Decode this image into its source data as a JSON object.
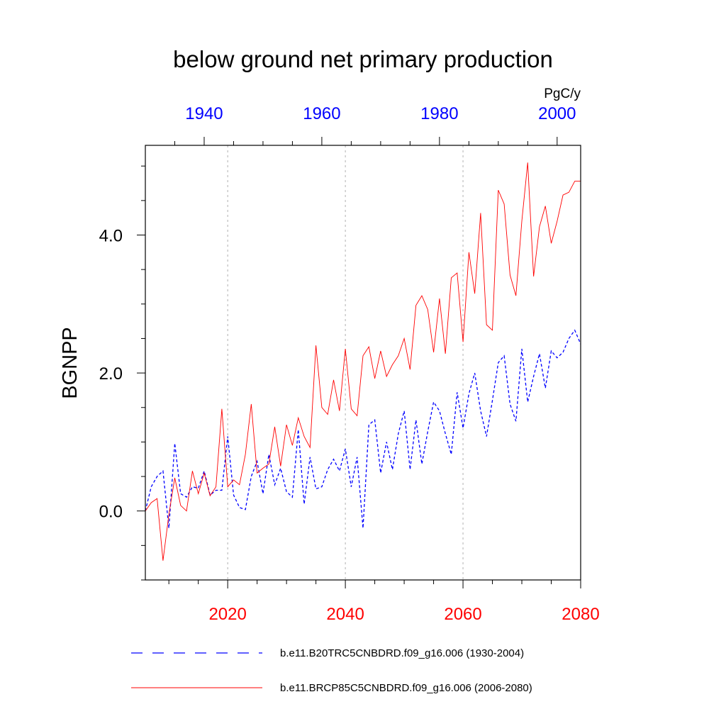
{
  "chart_data": {
    "type": "line",
    "title": "below ground net primary production",
    "units": "PgC/y",
    "ylabel": "BGNPP",
    "xlabel": "",
    "ylim": [
      -1.0,
      5.3
    ],
    "yticks": [
      0.0,
      2.0,
      4.0
    ],
    "ytick_labels": [
      "0.0",
      "2.0",
      "4.0"
    ],
    "top_axis": {
      "range": [
        1930,
        2004
      ],
      "ticks": [
        1940,
        1960,
        1980,
        2000
      ],
      "labels": [
        "1940",
        "1960",
        "1980",
        "2000"
      ],
      "color": "#0000ff"
    },
    "bottom_axis": {
      "range": [
        2006,
        2080
      ],
      "ticks": [
        2020,
        2040,
        2060,
        2080
      ],
      "labels": [
        "2020",
        "2040",
        "2060",
        "2080"
      ],
      "color": "#ff0000"
    },
    "grid": "vertical dashed at bottom-axis major ticks",
    "legend_placement": "bottom",
    "series": [
      {
        "name": "b.e11.B20TRC5CNBDRD.f09_g16.006 (1930-2004)",
        "axis": "top",
        "color": "#0000ff",
        "style": "dashed",
        "x_start": 1930,
        "values": [
          0.0,
          0.35,
          0.5,
          0.58,
          -0.25,
          0.98,
          0.25,
          0.2,
          0.35,
          0.33,
          0.58,
          0.23,
          0.3,
          0.3,
          1.08,
          0.23,
          0.05,
          0.02,
          0.5,
          0.72,
          0.25,
          0.82,
          0.38,
          0.62,
          0.28,
          0.2,
          1.18,
          0.1,
          0.78,
          0.32,
          0.35,
          0.6,
          0.75,
          0.58,
          0.9,
          0.35,
          0.78,
          -0.25,
          1.25,
          1.32,
          0.55,
          1.0,
          0.6,
          1.12,
          1.45,
          0.6,
          1.32,
          0.68,
          1.15,
          1.58,
          1.45,
          1.12,
          0.82,
          1.72,
          1.2,
          1.7,
          2.0,
          1.45,
          1.08,
          1.6,
          2.15,
          2.25,
          1.55,
          1.3,
          2.35,
          1.58,
          1.95,
          2.28,
          1.78,
          2.32,
          2.22,
          2.3,
          2.5,
          2.62,
          2.42
        ]
      },
      {
        "name": "b.e11.BRCP85C5CNBDRD.f09_g16.006 (2006-2080)",
        "axis": "bottom",
        "color": "#ff0000",
        "style": "solid",
        "x_start": 2006,
        "values": [
          0.0,
          0.12,
          0.18,
          -0.72,
          -0.05,
          0.48,
          0.08,
          0.0,
          0.58,
          0.25,
          0.55,
          0.22,
          0.35,
          1.48,
          0.35,
          0.45,
          0.38,
          0.82,
          1.55,
          0.55,
          0.62,
          0.68,
          1.22,
          0.65,
          1.25,
          0.95,
          1.35,
          1.08,
          0.92,
          2.4,
          1.5,
          1.4,
          1.9,
          1.45,
          2.35,
          1.48,
          1.38,
          2.25,
          2.38,
          1.92,
          2.32,
          1.95,
          2.12,
          2.25,
          2.5,
          2.05,
          2.98,
          3.12,
          2.92,
          2.3,
          3.08,
          2.28,
          3.38,
          3.45,
          2.45,
          3.75,
          3.15,
          4.32,
          2.7,
          2.62,
          4.65,
          4.45,
          3.42,
          3.12,
          4.2,
          5.05,
          3.4,
          4.12,
          4.42,
          3.88,
          4.2,
          4.58,
          4.62,
          4.78,
          4.78
        ]
      }
    ]
  }
}
